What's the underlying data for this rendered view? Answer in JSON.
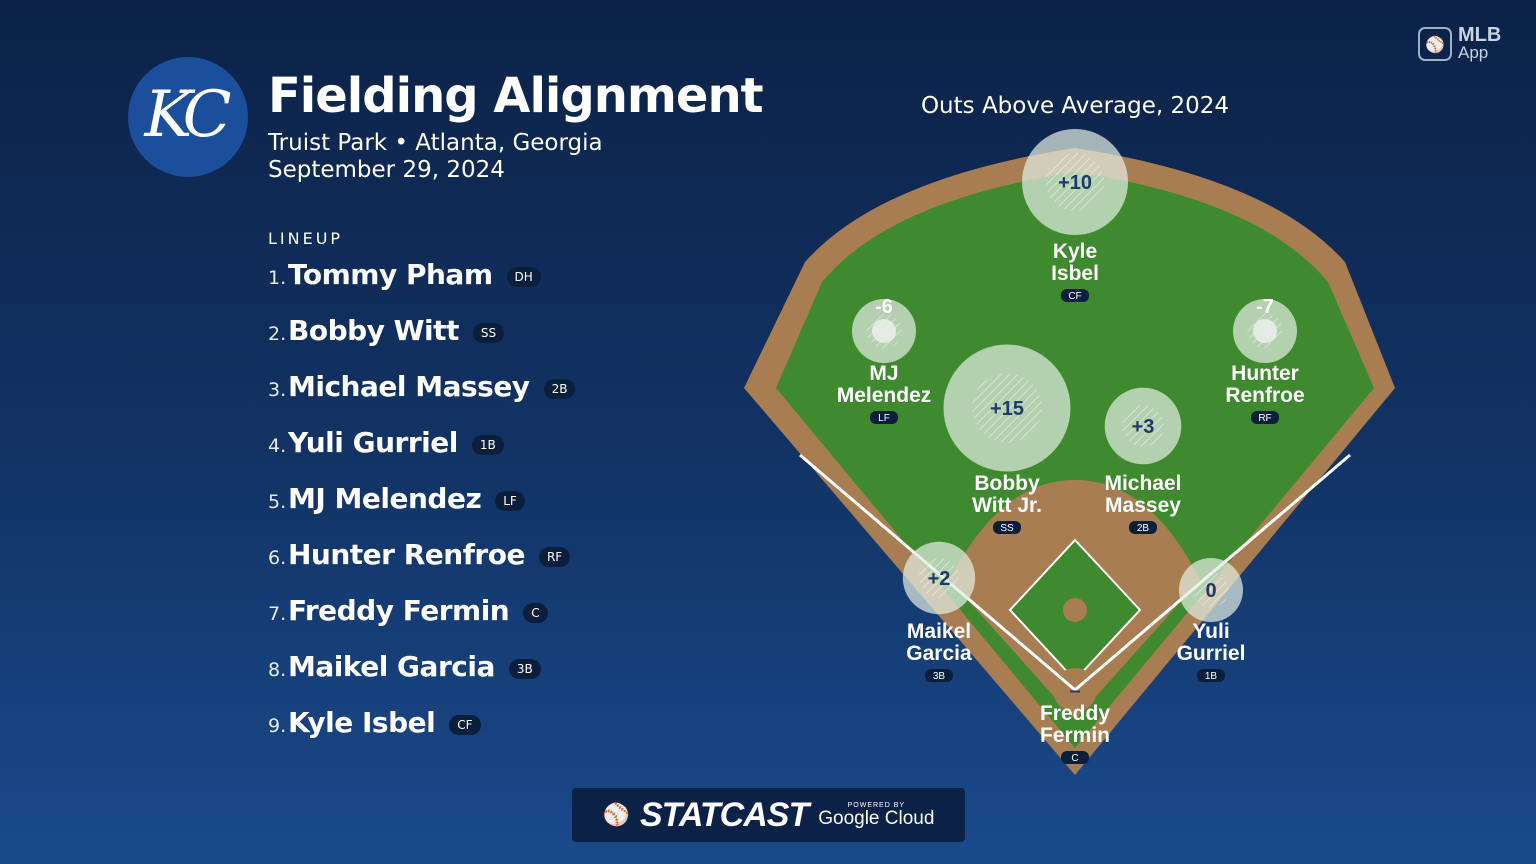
{
  "team_logo": "KC",
  "title": "Fielding Alignment",
  "venue": "Truist Park • Atlanta, Georgia",
  "date": "September 29, 2024",
  "lineup_label": "LINEUP",
  "lineup": [
    {
      "num": "1.",
      "name": "Tommy Pham",
      "pos": "DH"
    },
    {
      "num": "2.",
      "name": "Bobby Witt",
      "pos": "SS"
    },
    {
      "num": "3.",
      "name": "Michael Massey",
      "pos": "2B"
    },
    {
      "num": "4.",
      "name": "Yuli Gurriel",
      "pos": "1B"
    },
    {
      "num": "5.",
      "name": "MJ Melendez",
      "pos": "LF"
    },
    {
      "num": "6.",
      "name": "Hunter Renfroe",
      "pos": "RF"
    },
    {
      "num": "7.",
      "name": "Freddy Fermin",
      "pos": "C"
    },
    {
      "num": "8.",
      "name": "Maikel Garcia",
      "pos": "3B"
    },
    {
      "num": "9.",
      "name": "Kyle Isbel",
      "pos": "CF"
    }
  ],
  "chart_title": "Outs Above Average, 2024",
  "fielders": [
    {
      "pos": "CF",
      "line1": "Kyle",
      "line2": "Isbel",
      "oaa": "+10",
      "oaa_value": 10
    },
    {
      "pos": "LF",
      "line1": "MJ",
      "line2": "Melendez",
      "oaa": "-6",
      "oaa_value": -6
    },
    {
      "pos": "RF",
      "line1": "Hunter",
      "line2": "Renfroe",
      "oaa": "-7",
      "oaa_value": -7
    },
    {
      "pos": "SS",
      "line1": "Bobby",
      "line2": "Witt Jr.",
      "oaa": "+15",
      "oaa_value": 15
    },
    {
      "pos": "2B",
      "line1": "Michael",
      "line2": "Massey",
      "oaa": "+3",
      "oaa_value": 3
    },
    {
      "pos": "3B",
      "line1": "Maikel",
      "line2": "Garcia",
      "oaa": "+2",
      "oaa_value": 2
    },
    {
      "pos": "1B",
      "line1": "Yuli",
      "line2": "Gurriel",
      "oaa": "0",
      "oaa_value": 0
    },
    {
      "pos": "C",
      "line1": "Freddy",
      "line2": "Fermin",
      "oaa": "–",
      "oaa_value": null
    }
  ],
  "app_badge": {
    "line1": "MLB",
    "line2": "App"
  },
  "footer": {
    "brand": "STATCAST",
    "powered_by": "POWERED BY",
    "partner": "Google Cloud"
  },
  "colors": {
    "grass": "#3f8a2f",
    "dirt": "#a97d52",
    "bubble": "rgba(230,238,230,0.7)",
    "badge": "#0b1e3c"
  }
}
